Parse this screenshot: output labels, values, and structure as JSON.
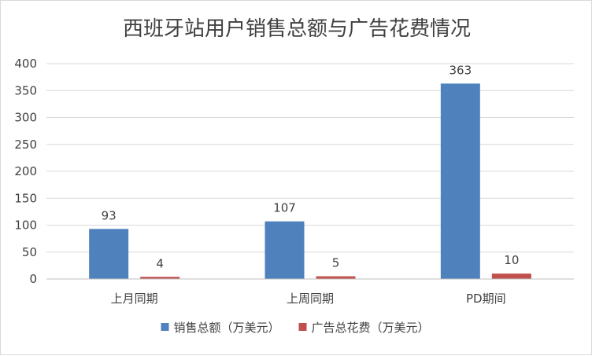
{
  "chart_data": {
    "type": "bar",
    "title": "西班牙站用户销售总额与广告花费情况",
    "categories": [
      "上月同期",
      "上周同期",
      "PD期间"
    ],
    "series": [
      {
        "name": "销售总额（万美元）",
        "values": [
          93,
          107,
          363
        ],
        "color": "#4f81bd"
      },
      {
        "name": "广告总花费（万美元）",
        "values": [
          4,
          5,
          10
        ],
        "color": "#c0504d"
      }
    ],
    "ylim": [
      0,
      400
    ],
    "yticks": [
      0,
      50,
      100,
      150,
      200,
      250,
      300,
      350,
      400
    ],
    "grid": true,
    "legend": "bottom"
  }
}
